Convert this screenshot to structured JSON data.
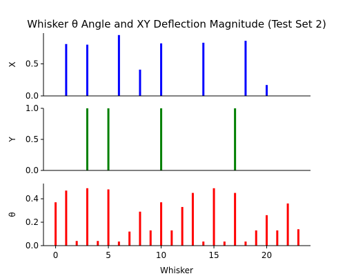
{
  "chart_data": {
    "type": "bar",
    "title": "Whisker θ Angle and XY Deflection Magnitude (Test Set 2)",
    "xlabel": "Whisker",
    "xlim": [
      -1.15,
      24.15
    ],
    "x_ticks": [
      0,
      5,
      10,
      15,
      20
    ],
    "panels": [
      {
        "ylabel": "X",
        "color": "#0000ff",
        "ylim": [
          0,
          0.98
        ],
        "y_ticks": [
          "0.0",
          "0.5"
        ],
        "points": [
          {
            "x": 1,
            "y": 0.81
          },
          {
            "x": 3,
            "y": 0.8
          },
          {
            "x": 6,
            "y": 0.95
          },
          {
            "x": 8,
            "y": 0.41
          },
          {
            "x": 10,
            "y": 0.82
          },
          {
            "x": 14,
            "y": 0.83
          },
          {
            "x": 18,
            "y": 0.86
          },
          {
            "x": 20,
            "y": 0.17
          }
        ]
      },
      {
        "ylabel": "Y",
        "color": "#008000",
        "ylim": [
          0,
          1.0
        ],
        "y_ticks": [
          "0.0",
          "0.5",
          "1.0"
        ],
        "points": [
          {
            "x": 3,
            "y": 1.0
          },
          {
            "x": 5,
            "y": 1.0
          },
          {
            "x": 10,
            "y": 1.0
          },
          {
            "x": 17,
            "y": 1.0
          }
        ]
      },
      {
        "ylabel": "θ",
        "color": "#ff0000",
        "ylim": [
          0,
          0.53
        ],
        "y_ticks": [
          "0.0",
          "0.2",
          "0.4"
        ],
        "points": [
          {
            "x": 0,
            "y": 0.37
          },
          {
            "x": 1,
            "y": 0.47
          },
          {
            "x": 2,
            "y": 0.04
          },
          {
            "x": 3,
            "y": 0.49
          },
          {
            "x": 4,
            "y": 0.04
          },
          {
            "x": 5,
            "y": 0.48
          },
          {
            "x": 6,
            "y": 0.035
          },
          {
            "x": 7,
            "y": 0.12
          },
          {
            "x": 8,
            "y": 0.29
          },
          {
            "x": 9,
            "y": 0.13
          },
          {
            "x": 10,
            "y": 0.37
          },
          {
            "x": 11,
            "y": 0.13
          },
          {
            "x": 12,
            "y": 0.33
          },
          {
            "x": 13,
            "y": 0.45
          },
          {
            "x": 14,
            "y": 0.035
          },
          {
            "x": 15,
            "y": 0.49
          },
          {
            "x": 16,
            "y": 0.035
          },
          {
            "x": 17,
            "y": 0.45
          },
          {
            "x": 18,
            "y": 0.035
          },
          {
            "x": 19,
            "y": 0.13
          },
          {
            "x": 20,
            "y": 0.26
          },
          {
            "x": 21,
            "y": 0.13
          },
          {
            "x": 22,
            "y": 0.36
          },
          {
            "x": 23,
            "y": 0.14
          }
        ]
      }
    ]
  }
}
